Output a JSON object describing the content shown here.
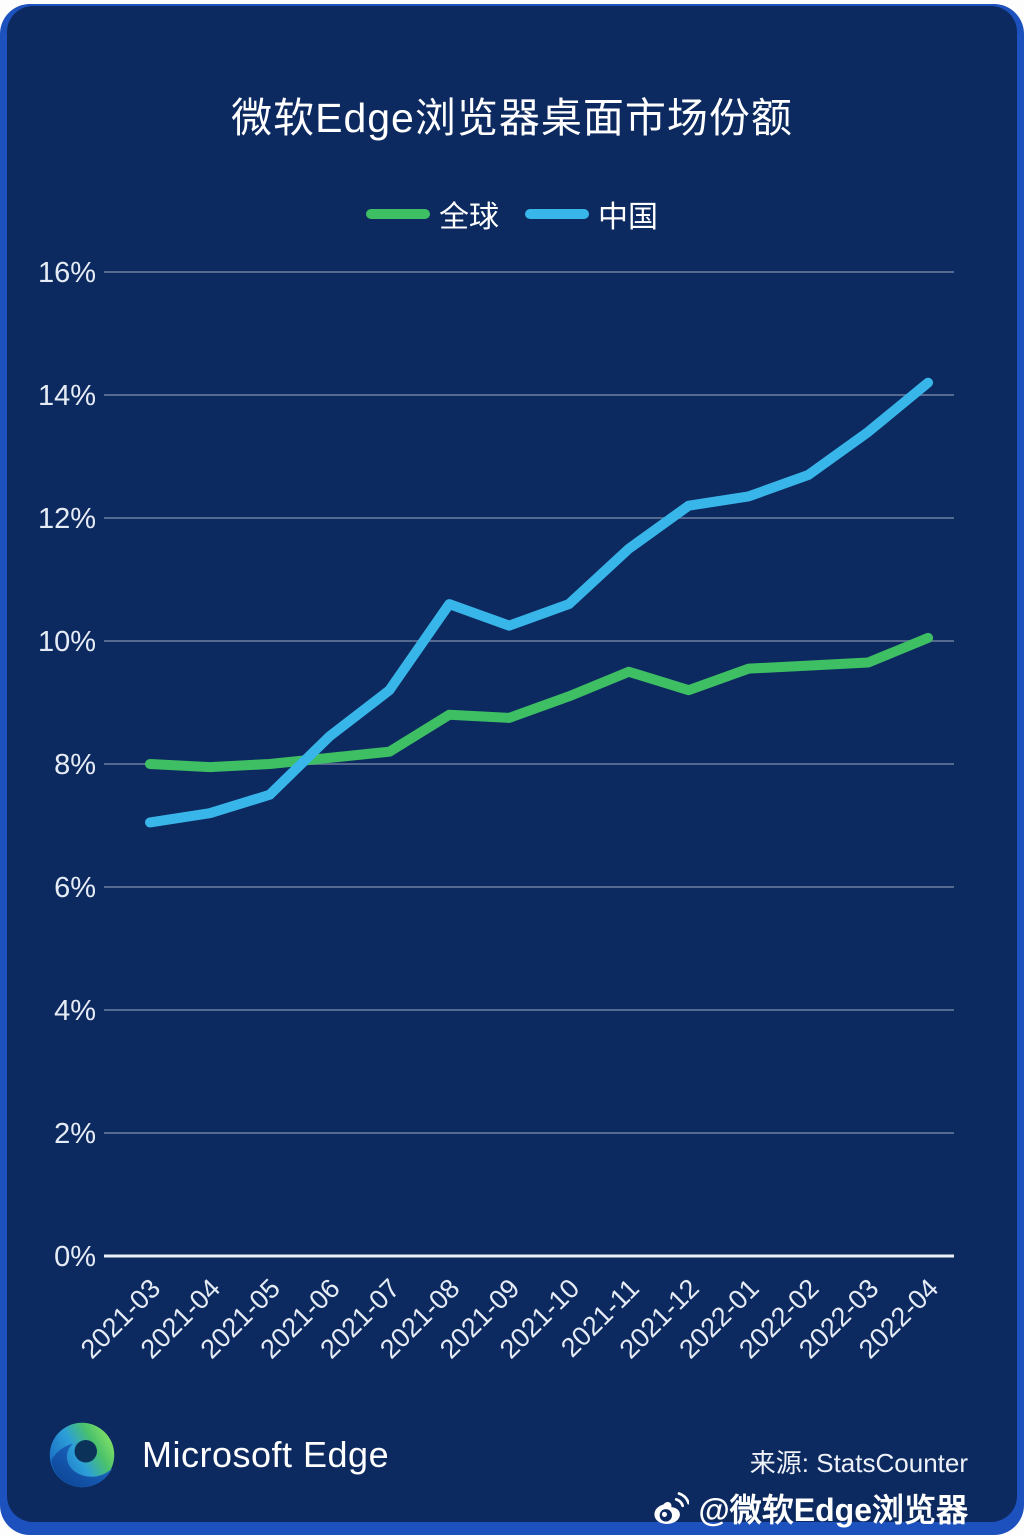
{
  "chart_data": {
    "type": "line",
    "title": "微软Edge浏览器桌面市场份额",
    "categories": [
      "2021-03",
      "2021-04",
      "2021-05",
      "2021-06",
      "2021-07",
      "2021-08",
      "2021-09",
      "2021-10",
      "2021-11",
      "2021-12",
      "2022-01",
      "2022-02",
      "2022-03",
      "2022-04"
    ],
    "series": [
      {
        "name": "全球",
        "color": "#3ebf63",
        "values": [
          8.0,
          7.95,
          8.0,
          8.1,
          8.2,
          8.8,
          8.75,
          9.1,
          9.5,
          9.2,
          9.55,
          9.6,
          9.65,
          10.05
        ]
      },
      {
        "name": "中国",
        "color": "#38b6ea",
        "values": [
          7.05,
          7.2,
          7.5,
          8.45,
          9.2,
          10.6,
          10.25,
          10.6,
          11.5,
          12.2,
          12.35,
          12.7,
          13.4,
          14.2
        ]
      }
    ],
    "xlabel": "",
    "ylabel": "",
    "ylim": [
      0,
      16
    ],
    "ytick_step": 2,
    "ytick_suffix": "%",
    "grid": true,
    "legend_position": "top-center",
    "x_label_rotation": -45
  },
  "footer": {
    "brand": "Microsoft Edge",
    "source_label": "来源: StatsCounter",
    "weibo_handle": "@微软Edge浏览器"
  },
  "colors": {
    "card_bg": "#0d2a60",
    "accent_strip": "#1d51bd",
    "gridline": "#6f7f9e",
    "axis_line": "#edf1f7",
    "tick_text": "#e6ecf5",
    "title_text": "#ffffff"
  }
}
